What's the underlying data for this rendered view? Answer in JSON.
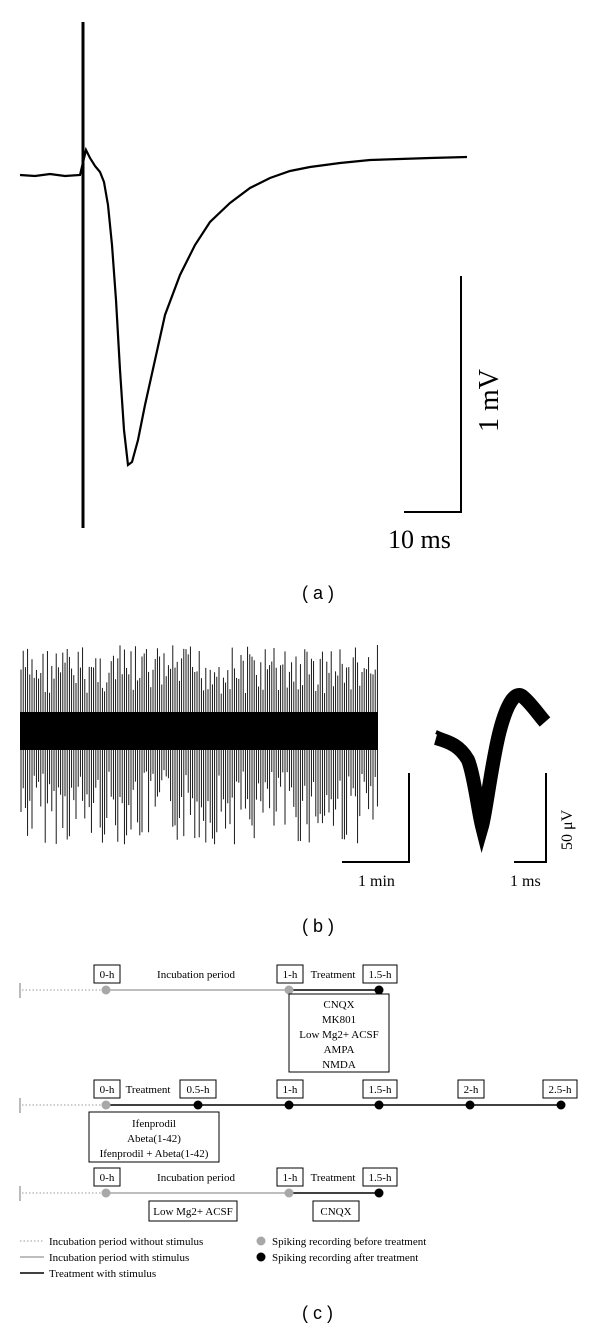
{
  "panel_a": {
    "label": "( a )",
    "scale_v": "1 mV",
    "scale_t": "10 ms"
  },
  "panel_b": {
    "label": "( b )",
    "scale_t_trace": "1 min",
    "scale_t_spike": "1 ms",
    "scale_v": "50 μV"
  },
  "panel_c": {
    "label": "( c )",
    "row1": {
      "t0": "0-h",
      "t1": "1-h",
      "t2": "1.5-h",
      "incubation": "Incubation period",
      "treatment": "Treatment",
      "drugs": [
        "CNQX",
        "MK801",
        "Low Mg2+ ACSF",
        "AMPA",
        "NMDA"
      ]
    },
    "row2": {
      "times": [
        "0-h",
        "0.5-h",
        "1-h",
        "1.5-h",
        "2-h",
        "2.5-h"
      ],
      "treatment": "Treatment",
      "drugs": [
        "Ifenprodil",
        "Abeta(1-42)",
        "Ifenprodil + Abeta(1-42)"
      ]
    },
    "row3": {
      "t0": "0-h",
      "t1": "1-h",
      "t2": "1.5-h",
      "incubation": "Incubation period",
      "treatment": "Treatment",
      "box1": "Low Mg2+ ACSF",
      "box2": "CNQX"
    },
    "legend": {
      "dotted": "Incubation period without stimulus",
      "gray": "Incubation period with stimulus",
      "black": "Treatment with stimulus",
      "gray_dot": "Spiking recording before treatment",
      "black_dot": "Spiking recording after treatment"
    }
  },
  "colors": {
    "gray": "#a8a8a8",
    "black": "#000000"
  }
}
